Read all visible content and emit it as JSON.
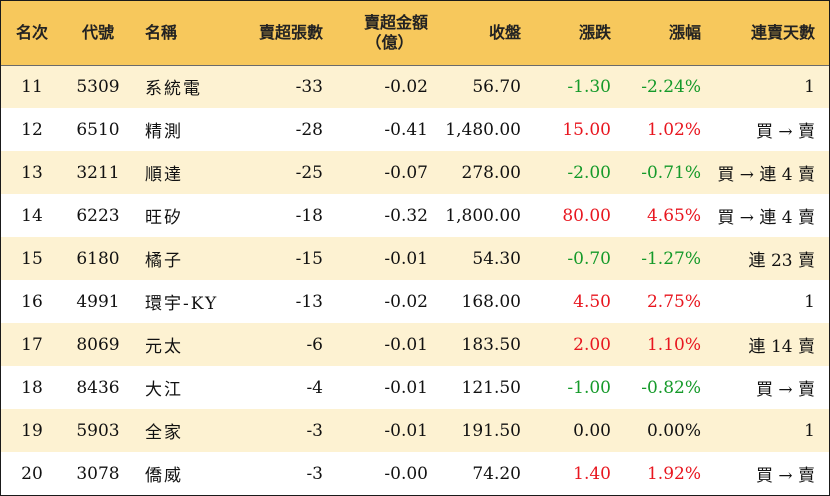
{
  "headers": {
    "rank": "名次",
    "code": "代號",
    "name": "名稱",
    "sell_lots": "賣超張數",
    "sell_amount_line1": "賣超金額",
    "sell_amount_line2": "（億）",
    "close": "收盤",
    "change": "漲跌",
    "change_pct": "漲幅",
    "streak": "連賣天數"
  },
  "rows": [
    {
      "rank": "11",
      "code": "5309",
      "name": "系統電",
      "sell_lots": "-33",
      "sell_amount": "-0.02",
      "close": "56.70",
      "change": "-1.30",
      "change_pct": "-2.24%",
      "streak": "1",
      "trend": "down"
    },
    {
      "rank": "12",
      "code": "6510",
      "name": "精測",
      "sell_lots": "-28",
      "sell_amount": "-0.41",
      "close": "1,480.00",
      "change": "15.00",
      "change_pct": "1.02%",
      "streak": "買 → 賣",
      "trend": "up"
    },
    {
      "rank": "13",
      "code": "3211",
      "name": "順達",
      "sell_lots": "-25",
      "sell_amount": "-0.07",
      "close": "278.00",
      "change": "-2.00",
      "change_pct": "-0.71%",
      "streak": "買 → 連 4 賣",
      "trend": "down"
    },
    {
      "rank": "14",
      "code": "6223",
      "name": "旺矽",
      "sell_lots": "-18",
      "sell_amount": "-0.32",
      "close": "1,800.00",
      "change": "80.00",
      "change_pct": "4.65%",
      "streak": "買 → 連 4 賣",
      "trend": "up"
    },
    {
      "rank": "15",
      "code": "6180",
      "name": "橘子",
      "sell_lots": "-15",
      "sell_amount": "-0.01",
      "close": "54.30",
      "change": "-0.70",
      "change_pct": "-1.27%",
      "streak": "連 23 賣",
      "trend": "down"
    },
    {
      "rank": "16",
      "code": "4991",
      "name": "環宇-KY",
      "sell_lots": "-13",
      "sell_amount": "-0.02",
      "close": "168.00",
      "change": "4.50",
      "change_pct": "2.75%",
      "streak": "1",
      "trend": "up"
    },
    {
      "rank": "17",
      "code": "8069",
      "name": "元太",
      "sell_lots": "-6",
      "sell_amount": "-0.01",
      "close": "183.50",
      "change": "2.00",
      "change_pct": "1.10%",
      "streak": "連 14 賣",
      "trend": "up"
    },
    {
      "rank": "18",
      "code": "8436",
      "name": "大江",
      "sell_lots": "-4",
      "sell_amount": "-0.01",
      "close": "121.50",
      "change": "-1.00",
      "change_pct": "-0.82%",
      "streak": "買 → 賣",
      "trend": "down"
    },
    {
      "rank": "19",
      "code": "5903",
      "name": "全家",
      "sell_lots": "-3",
      "sell_amount": "-0.01",
      "close": "191.50",
      "change": "0.00",
      "change_pct": "0.00%",
      "streak": "1",
      "trend": "flat"
    },
    {
      "rank": "20",
      "code": "3078",
      "name": "僑威",
      "sell_lots": "-3",
      "sell_amount": "-0.00",
      "close": "74.20",
      "change": "1.40",
      "change_pct": "1.92%",
      "streak": "買 → 賣",
      "trend": "up"
    }
  ],
  "colors": {
    "header_bg": "#f7c85c",
    "stripe_bg": "#fdf2d2",
    "up": "#e8161f",
    "down": "#159a2a",
    "flat": "#111111"
  }
}
